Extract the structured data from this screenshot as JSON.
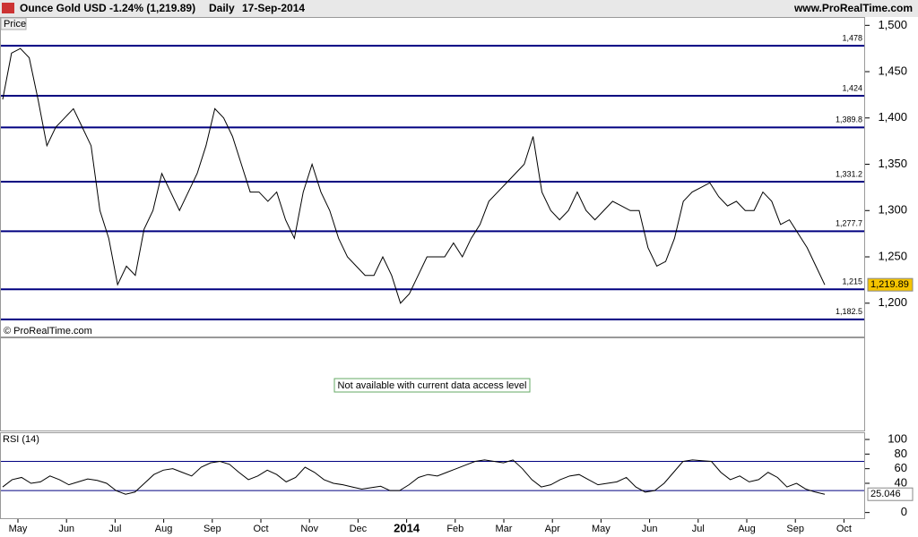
{
  "header": {
    "instrument": "Ounce Gold USD",
    "change": "-1.24% (1,219.89)",
    "period": "Daily",
    "date": "17-Sep-2014",
    "site": "www.ProRealTime.com"
  },
  "chart_data": [
    {
      "type": "line",
      "label": "Price",
      "watermark": "© ProRealTime.com",
      "color": "#000000",
      "values": [
        1420,
        1470,
        1475,
        1465,
        1420,
        1370,
        1390,
        1400,
        1410,
        1390,
        1370,
        1300,
        1270,
        1220,
        1240,
        1230,
        1280,
        1300,
        1340,
        1320,
        1300,
        1320,
        1340,
        1370,
        1410,
        1400,
        1380,
        1350,
        1320,
        1320,
        1310,
        1320,
        1290,
        1270,
        1320,
        1350,
        1320,
        1300,
        1270,
        1250,
        1240,
        1230,
        1230,
        1250,
        1230,
        1200,
        1210,
        1230,
        1250,
        1250,
        1250,
        1265,
        1250,
        1270,
        1285,
        1310,
        1320,
        1330,
        1340,
        1350,
        1380,
        1320,
        1300,
        1290,
        1300,
        1320,
        1300,
        1290,
        1300,
        1310,
        1305,
        1300,
        1300,
        1260,
        1240,
        1245,
        1270,
        1310,
        1320,
        1325,
        1330,
        1315,
        1305,
        1310,
        1300,
        1300,
        1320,
        1310,
        1285,
        1290,
        1275,
        1260,
        1240,
        1219.89
      ],
      "last": {
        "value": 1219.89,
        "label": "1,219.89"
      },
      "levels": [
        {
          "value": 1478,
          "label": "1,478"
        },
        {
          "value": 1424,
          "label": "1,424"
        },
        {
          "value": 1389.8,
          "label": "1,389.8"
        },
        {
          "value": 1331.2,
          "label": "1,331.2"
        },
        {
          "value": 1277.7,
          "label": "1,277.7"
        },
        {
          "value": 1215,
          "label": "1,215"
        },
        {
          "value": 1182.5,
          "label": "1,182.5"
        }
      ],
      "level_color": "#000080",
      "ylim": [
        1164,
        1509
      ],
      "yticks": [
        {
          "value": 1200,
          "label": "1,200"
        },
        {
          "value": 1250,
          "label": "1,250"
        },
        {
          "value": 1300,
          "label": "1,300"
        },
        {
          "value": 1350,
          "label": "1,350"
        },
        {
          "value": 1400,
          "label": "1,400"
        },
        {
          "value": 1450,
          "label": "1,450"
        },
        {
          "value": 1500,
          "label": "1,500"
        }
      ]
    },
    {
      "type": "note",
      "text": "Not available with current data access level"
    },
    {
      "type": "line",
      "label": "RSI (14)",
      "color": "#000000",
      "values": [
        35,
        45,
        48,
        40,
        42,
        50,
        45,
        38,
        42,
        46,
        44,
        40,
        30,
        25,
        28,
        40,
        52,
        58,
        60,
        55,
        50,
        62,
        68,
        70,
        66,
        55,
        45,
        50,
        58,
        52,
        42,
        48,
        62,
        55,
        45,
        40,
        38,
        35,
        32,
        34,
        36,
        30,
        30,
        38,
        48,
        52,
        50,
        55,
        60,
        65,
        70,
        72,
        70,
        68,
        72,
        60,
        45,
        35,
        38,
        45,
        50,
        52,
        45,
        38,
        40,
        42,
        48,
        35,
        28,
        30,
        40,
        55,
        70,
        72,
        71,
        70,
        55,
        45,
        50,
        42,
        45,
        55,
        48,
        35,
        40,
        32,
        28,
        25.046
      ],
      "last": 25.046,
      "levels": [
        30,
        70
      ],
      "level_color": "#000080",
      "ylim": [
        -9,
        108.6
      ],
      "yticks": [
        0,
        40,
        60,
        80,
        100
      ]
    }
  ],
  "x_axis": {
    "categories": [
      "May",
      "Jun",
      "Jul",
      "Aug",
      "Sep",
      "Oct",
      "Nov",
      "Dec",
      "2014",
      "Feb",
      "Mar",
      "Apr",
      "May",
      "Jun",
      "Jul",
      "Aug",
      "Sep",
      "Oct"
    ]
  }
}
